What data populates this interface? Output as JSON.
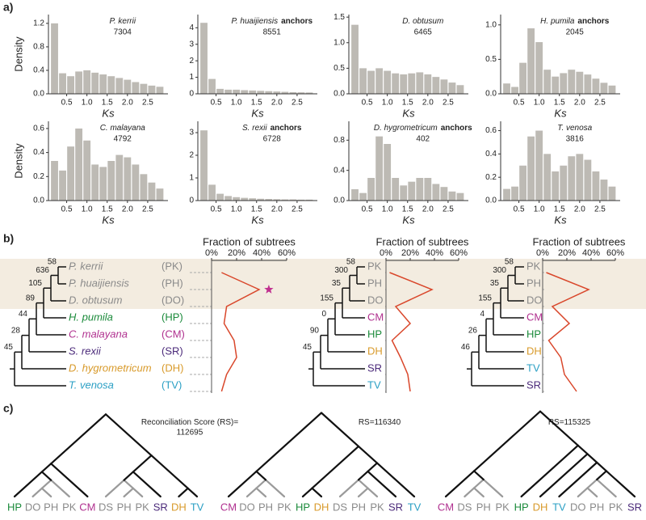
{
  "panel_labels": [
    "a)",
    "b)",
    "c)"
  ],
  "chart_data": [
    {
      "type": "histogram",
      "species": "P. kerrii",
      "count": 7304,
      "y_label": "Density",
      "x_label": "Ks",
      "color": "#bdbab4",
      "bins": [
        0.1,
        0.3,
        0.5,
        0.7,
        0.9,
        1.1,
        1.3,
        1.5,
        1.7,
        1.9,
        2.1,
        2.3,
        2.5,
        2.7,
        2.9
      ],
      "counts": [
        1.2,
        0.35,
        0.3,
        0.38,
        0.4,
        0.36,
        0.33,
        0.3,
        0.27,
        0.24,
        0.2,
        0.17,
        0.14,
        0.12
      ],
      "xlim": [
        0.05,
        3.0
      ],
      "xticks": [
        0.5,
        {
          "value": 1,
          "label": "1.0"
        },
        1.5,
        {
          "value": 2,
          "label": "2.0"
        },
        2.5
      ],
      "ylim": [
        0,
        1.35
      ],
      "yticks": [
        {
          "value": 0,
          "label": "0.0"
        },
        0.4,
        0.8,
        1.2
      ]
    },
    {
      "type": "histogram",
      "species": "P. huaijiensis",
      "qualifier": "anchors",
      "count": 8551,
      "x_label": "Ks",
      "color": "#bdbab4",
      "bins": [
        0.1,
        0.3,
        0.5,
        0.7,
        0.9,
        1.1,
        1.3,
        1.5,
        1.7,
        1.9,
        2.1,
        2.3,
        2.5,
        2.7,
        2.9
      ],
      "counts": [
        4.3,
        0.9,
        0.3,
        0.25,
        0.25,
        0.22,
        0.2,
        0.18,
        0.16,
        0.14,
        0.12,
        0.1,
        0.09,
        0.08
      ],
      "xlim": [
        0.05,
        3.0
      ],
      "xticks": [
        0.5,
        {
          "value": 1,
          "label": "1.0"
        },
        1.5,
        {
          "value": 2,
          "label": "2.0"
        },
        2.5
      ],
      "ylim": [
        0,
        4.8
      ],
      "yticks": [
        0,
        1,
        2,
        3,
        4
      ]
    },
    {
      "type": "histogram",
      "species": "D. obtusum",
      "count": 6465,
      "x_label": "Ks",
      "color": "#bdbab4",
      "bins": [
        0.1,
        0.3,
        0.5,
        0.7,
        0.9,
        1.1,
        1.3,
        1.5,
        1.7,
        1.9,
        2.1,
        2.3,
        2.5,
        2.7,
        2.9
      ],
      "counts": [
        1.35,
        0.5,
        0.45,
        0.5,
        0.45,
        0.4,
        0.38,
        0.4,
        0.42,
        0.38,
        0.33,
        0.28,
        0.22,
        0.17
      ],
      "xlim": [
        0.05,
        3.0
      ],
      "xticks": [
        0.5,
        {
          "value": 1,
          "label": "1.0"
        },
        1.5,
        {
          "value": 2,
          "label": "2.0"
        },
        2.5
      ],
      "ylim": [
        0,
        1.55
      ],
      "yticks": [
        {
          "value": 0,
          "label": "0.0"
        },
        0.5,
        {
          "value": 1,
          "label": "1.0"
        },
        1.5
      ]
    },
    {
      "type": "histogram",
      "species": "H. pumila",
      "qualifier": "anchors",
      "count": 2045,
      "x_label": "Ks",
      "color": "#bdbab4",
      "bins": [
        0.1,
        0.3,
        0.5,
        0.7,
        0.9,
        1.1,
        1.3,
        1.5,
        1.7,
        1.9,
        2.1,
        2.3,
        2.5,
        2.7,
        2.9
      ],
      "counts": [
        0.15,
        0.1,
        0.45,
        0.95,
        0.75,
        0.35,
        0.25,
        0.3,
        0.35,
        0.32,
        0.28,
        0.22,
        0.16,
        0.12
      ],
      "xlim": [
        0.05,
        3.0
      ],
      "xticks": [
        0.5,
        {
          "value": 1,
          "label": "1.0"
        },
        1.5,
        {
          "value": 2,
          "label": "2.0"
        },
        2.5
      ],
      "ylim": [
        0,
        1.15
      ],
      "yticks": [
        {
          "value": 0,
          "label": "0.0"
        },
        0.5,
        {
          "value": 1,
          "label": "1.0"
        }
      ]
    },
    {
      "type": "histogram",
      "species": "C. malayana",
      "count": 4792,
      "y_label": "Density",
      "x_label": "Ks",
      "color": "#bdbab4",
      "bins": [
        0.1,
        0.3,
        0.5,
        0.7,
        0.9,
        1.1,
        1.3,
        1.5,
        1.7,
        1.9,
        2.1,
        2.3,
        2.5,
        2.7,
        2.9
      ],
      "counts": [
        0.33,
        0.25,
        0.45,
        0.6,
        0.5,
        0.3,
        0.28,
        0.33,
        0.38,
        0.36,
        0.3,
        0.22,
        0.15,
        0.1
      ],
      "xlim": [
        0.05,
        3.0
      ],
      "xticks": [
        0.5,
        {
          "value": 1,
          "label": "1.0"
        },
        1.5,
        {
          "value": 2,
          "label": "2.0"
        },
        2.5
      ],
      "ylim": [
        0,
        0.66
      ],
      "yticks": [
        {
          "value": 0,
          "label": "0.0"
        },
        0.2,
        0.4,
        0.6
      ]
    },
    {
      "type": "histogram",
      "species": "S. rexii",
      "qualifier": "anchors",
      "count": 6728,
      "x_label": "Ks",
      "color": "#bdbab4",
      "bins": [
        0.1,
        0.3,
        0.5,
        0.7,
        0.9,
        1.1,
        1.3,
        1.5,
        1.7,
        1.9,
        2.1,
        2.3,
        2.5,
        2.7,
        2.9
      ],
      "counts": [
        3.1,
        0.7,
        0.3,
        0.2,
        0.15,
        0.12,
        0.1,
        0.08,
        0.07,
        0.06,
        0.05,
        0.05,
        0.04,
        0.04
      ],
      "xlim": [
        0.05,
        3.0
      ],
      "xticks": [
        0.5,
        {
          "value": 1,
          "label": "1.0"
        },
        1.5,
        {
          "value": 2,
          "label": "2.0"
        },
        2.5
      ],
      "ylim": [
        0,
        3.5
      ],
      "yticks": [
        0,
        1,
        2,
        3
      ]
    },
    {
      "type": "histogram",
      "species": "D. hygrometricum",
      "qualifier": "anchors",
      "count": 402,
      "x_label": "Ks",
      "color": "#bdbab4",
      "bins": [
        0.1,
        0.3,
        0.5,
        0.7,
        0.9,
        1.1,
        1.3,
        1.5,
        1.7,
        1.9,
        2.1,
        2.3,
        2.5,
        2.7,
        2.9
      ],
      "counts": [
        0.15,
        0.1,
        0.3,
        0.85,
        0.75,
        0.3,
        0.2,
        0.25,
        0.3,
        0.3,
        0.22,
        0.18,
        0.12,
        0.1
      ],
      "xlim": [
        0.05,
        3.0
      ],
      "xticks": [
        0.5,
        {
          "value": 1,
          "label": "1.0"
        },
        1.5,
        {
          "value": 2,
          "label": "2.0"
        },
        2.5
      ],
      "ylim": [
        0,
        1.05
      ],
      "yticks": [
        {
          "value": 0,
          "label": "0.0"
        },
        0.4,
        0.8
      ]
    },
    {
      "type": "histogram",
      "species": "T. venosa",
      "count": 3816,
      "x_label": "Ks",
      "color": "#bdbab4",
      "bins": [
        0.1,
        0.3,
        0.5,
        0.7,
        0.9,
        1.1,
        1.3,
        1.5,
        1.7,
        1.9,
        2.1,
        2.3,
        2.5,
        2.7,
        2.9
      ],
      "counts": [
        0.1,
        0.12,
        0.3,
        0.55,
        0.6,
        0.4,
        0.25,
        0.3,
        0.38,
        0.4,
        0.35,
        0.25,
        0.18,
        0.12
      ],
      "xlim": [
        0.05,
        3.0
      ],
      "xticks": [
        0.5,
        {
          "value": 1,
          "label": "1.0"
        },
        1.5,
        {
          "value": 2,
          "label": "2.0"
        },
        2.5
      ],
      "ylim": [
        0,
        0.68
      ],
      "yticks": [
        {
          "value": 0,
          "label": "0.0"
        },
        0.2,
        0.4,
        0.6
      ]
    }
  ],
  "subtree_panels": [
    {
      "taxa": [
        {
          "name": "P. kerrii",
          "code": "(PK)",
          "color": "#8a8a8a"
        },
        {
          "name": "P. huaijiensis",
          "code": "(PH)",
          "color": "#8a8a8a"
        },
        {
          "name": "D. obtusum",
          "code": "(DO)",
          "color": "#8a8a8a"
        },
        {
          "name": "H. pumila",
          "code": "(HP)",
          "color": "#1a8a3a"
        },
        {
          "name": "C. malayana",
          "code": "(CM)",
          "color": "#b0308f"
        },
        {
          "name": "S. rexii",
          "code": "(SR)",
          "color": "#4b2a7a"
        },
        {
          "name": "D. hygrometricum",
          "code": "(DH)",
          "color": "#d89a2a"
        },
        {
          "name": "T. venosa",
          "code": "(TV)",
          "color": "#2a9fc4"
        }
      ],
      "node_support": [
        58,
        636,
        105,
        89,
        44,
        28,
        45
      ],
      "axis_title": "Fraction of subtrees",
      "xlim": [
        0,
        60
      ],
      "xticks": [
        {
          "value": 0,
          "label": "0%"
        },
        {
          "value": 20,
          "label": "20%"
        },
        {
          "value": 40,
          "label": "40%"
        },
        {
          "value": 60,
          "label": "60%"
        }
      ],
      "fractions": [
        8,
        38,
        12,
        10,
        18,
        20,
        12,
        8
      ],
      "line_color": "#d9472b"
    },
    {
      "taxa": [
        {
          "code": "PK",
          "color": "#8a8a8a"
        },
        {
          "code": "PH",
          "color": "#8a8a8a"
        },
        {
          "code": "DO",
          "color": "#8a8a8a"
        },
        {
          "code": "CM",
          "color": "#b0308f"
        },
        {
          "code": "HP",
          "color": "#1a8a3a"
        },
        {
          "code": "DH",
          "color": "#d89a2a"
        },
        {
          "code": "SR",
          "color": "#4b2a7a"
        },
        {
          "code": "TV",
          "color": "#2a9fc4"
        }
      ],
      "node_support": [
        58,
        300,
        35,
        155,
        0,
        90,
        45
      ],
      "axis_title": "Fraction of subtrees",
      "xlim": [
        0,
        60
      ],
      "xticks": [
        {
          "value": 0,
          "label": "0%"
        },
        {
          "value": 20,
          "label": "20%"
        },
        {
          "value": 40,
          "label": "40%"
        },
        {
          "value": 60,
          "label": "60%"
        }
      ],
      "fractions": [
        3,
        38,
        8,
        20,
        5,
        12,
        18,
        20
      ],
      "line_color": "#d9472b"
    },
    {
      "taxa": [
        {
          "code": "PK",
          "color": "#8a8a8a"
        },
        {
          "code": "PH",
          "color": "#8a8a8a"
        },
        {
          "code": "DO",
          "color": "#8a8a8a"
        },
        {
          "code": "CM",
          "color": "#b0308f"
        },
        {
          "code": "HP",
          "color": "#1a8a3a"
        },
        {
          "code": "DH",
          "color": "#d89a2a"
        },
        {
          "code": "TV",
          "color": "#2a9fc4"
        },
        {
          "code": "SR",
          "color": "#4b2a7a"
        }
      ],
      "node_support": [
        58,
        300,
        35,
        155,
        4,
        26,
        46
      ],
      "axis_title": "Fraction of subtrees",
      "xlim": [
        0,
        60
      ],
      "xticks": [
        {
          "value": 0,
          "label": "0%"
        },
        {
          "value": 20,
          "label": "20%"
        },
        {
          "value": 40,
          "label": "40%"
        },
        {
          "value": 60,
          "label": "60%"
        }
      ],
      "fractions": [
        3,
        38,
        8,
        22,
        5,
        15,
        18,
        28
      ],
      "line_color": "#d9472b"
    }
  ],
  "reconciliations": [
    {
      "score_label": "Reconciliation Score (RS)=",
      "score": 112695,
      "leaves": [
        {
          "code": "HP",
          "color": "#1a8a3a"
        },
        {
          "code": "DO",
          "color": "#8a8a8a"
        },
        {
          "code": "PH",
          "color": "#8a8a8a"
        },
        {
          "code": "PK",
          "color": "#8a8a8a"
        },
        {
          "code": "CM",
          "color": "#b0308f"
        },
        {
          "code": "DS",
          "color": "#8a8a8a"
        },
        {
          "code": "PH",
          "color": "#8a8a8a"
        },
        {
          "code": "PK",
          "color": "#8a8a8a"
        },
        {
          "code": "SR",
          "color": "#4b2a7a"
        },
        {
          "code": "DH",
          "color": "#d89a2a"
        },
        {
          "code": "TV",
          "color": "#2a9fc4"
        }
      ]
    },
    {
      "score_label": "RS=",
      "score": 116340,
      "leaves": [
        {
          "code": "CM",
          "color": "#b0308f"
        },
        {
          "code": "DO",
          "color": "#8a8a8a"
        },
        {
          "code": "PH",
          "color": "#8a8a8a"
        },
        {
          "code": "PK",
          "color": "#8a8a8a"
        },
        {
          "code": "HP",
          "color": "#1a8a3a"
        },
        {
          "code": "DH",
          "color": "#d89a2a"
        },
        {
          "code": "DS",
          "color": "#8a8a8a"
        },
        {
          "code": "PH",
          "color": "#8a8a8a"
        },
        {
          "code": "PK",
          "color": "#8a8a8a"
        },
        {
          "code": "SR",
          "color": "#4b2a7a"
        },
        {
          "code": "TV",
          "color": "#2a9fc4"
        }
      ]
    },
    {
      "score_label": "RS=",
      "score": 115325,
      "leaves": [
        {
          "code": "CM",
          "color": "#b0308f"
        },
        {
          "code": "DS",
          "color": "#8a8a8a"
        },
        {
          "code": "PH",
          "color": "#8a8a8a"
        },
        {
          "code": "PK",
          "color": "#8a8a8a"
        },
        {
          "code": "HP",
          "color": "#1a8a3a"
        },
        {
          "code": "DH",
          "color": "#d89a2a"
        },
        {
          "code": "TV",
          "color": "#2a9fc4"
        },
        {
          "code": "DO",
          "color": "#8a8a8a"
        },
        {
          "code": "PH",
          "color": "#8a8a8a"
        },
        {
          "code": "PK",
          "color": "#8a8a8a"
        },
        {
          "code": "SR",
          "color": "#4b2a7a"
        }
      ]
    }
  ]
}
